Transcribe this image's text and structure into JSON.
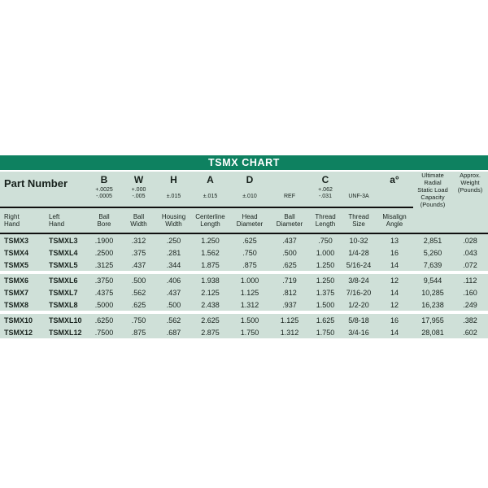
{
  "title": "TSMX CHART",
  "colors": {
    "header_green": "#0e8160",
    "table_mint": "#cfe0d8",
    "line_black": "#101010",
    "title_text": "#ffffff"
  },
  "table": {
    "part_number_label": "Part Number",
    "right_hand_label": "Right\nHand",
    "left_hand_label": "Left\nHand",
    "ultimate_label": "Ultimate\nRadial\nStatic Load\nCapacity\n(Pounds)",
    "approx_label": "Approx.\nWeight\n(Pounds)",
    "columns": [
      {
        "letter": "B",
        "tol_text": "+.0025\n-.0005",
        "sub": "Ball\nBore"
      },
      {
        "letter": "W",
        "tol_text": "+.000\n-.005",
        "sub": "Ball\nWidth"
      },
      {
        "letter": "H",
        "tol_text": "±.015",
        "sub": "Housing\nWidth"
      },
      {
        "letter": "A",
        "tol_text": "±.015",
        "sub": "Centerline\nLength"
      },
      {
        "letter": "D",
        "tol_text": "±.010",
        "sub": "Head\nDiameter"
      },
      {
        "letter": "",
        "tol_text": "REF",
        "sub": "Ball\nDiameter"
      },
      {
        "letter": "C",
        "tol_text": "+.062\n-.031",
        "sub": "Thread\nLength"
      },
      {
        "letter": "",
        "tol_text": "UNF-3A",
        "sub": "Thread\nSize"
      },
      {
        "letter": "a°",
        "tol_text": "",
        "sub": "Misalign\nAngle"
      }
    ],
    "rows": [
      [
        "TSMX3",
        "TSMXL3",
        ".1900",
        ".312",
        ".250",
        "1.250",
        ".625",
        ".437",
        ".750",
        "10-32",
        "13",
        "2,851",
        ".028"
      ],
      [
        "TSMX4",
        "TSMXL4",
        ".2500",
        ".375",
        ".281",
        "1.562",
        ".750",
        ".500",
        "1.000",
        "1/4-28",
        "16",
        "5,260",
        ".043"
      ],
      [
        "TSMX5",
        "TSMXL5",
        ".3125",
        ".437",
        ".344",
        "1.875",
        ".875",
        ".625",
        "1.250",
        "5/16-24",
        "14",
        "7,639",
        ".072"
      ],
      [
        "TSMX6",
        "TSMXL6",
        ".3750",
        ".500",
        ".406",
        "1.938",
        "1.000",
        ".719",
        "1.250",
        "3/8-24",
        "12",
        "9,544",
        ".112"
      ],
      [
        "TSMX7",
        "TSMXL7",
        ".4375",
        ".562",
        ".437",
        "2.125",
        "1.125",
        ".812",
        "1.375",
        "7/16-20",
        "14",
        "10,285",
        ".160"
      ],
      [
        "TSMX8",
        "TSMXL8",
        ".5000",
        ".625",
        ".500",
        "2.438",
        "1.312",
        ".937",
        "1.500",
        "1/2-20",
        "12",
        "16,238",
        ".249"
      ],
      [
        "TSMX10",
        "TSMXL10",
        ".6250",
        ".750",
        ".562",
        "2.625",
        "1.500",
        "1.125",
        "1.625",
        "5/8-18",
        "16",
        "17,955",
        ".382"
      ],
      [
        "TSMX12",
        "TSMXL12",
        ".7500",
        ".875",
        ".687",
        "2.875",
        "1.750",
        "1.312",
        "1.750",
        "3/4-16",
        "14",
        "28,081",
        ".602"
      ]
    ],
    "group_breaks_after": [
      2,
      5
    ]
  }
}
